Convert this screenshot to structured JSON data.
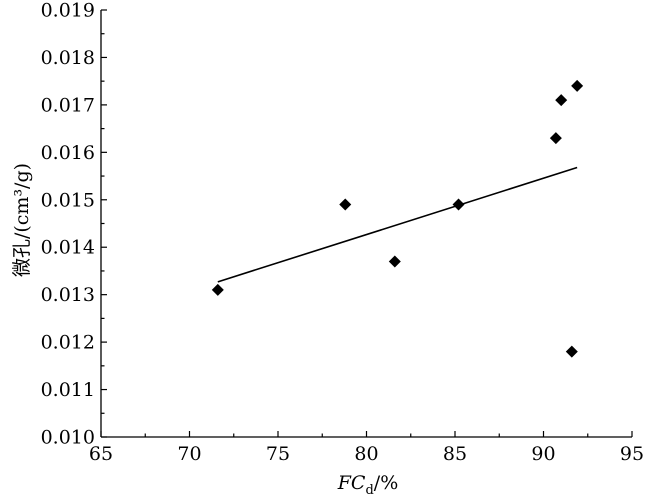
{
  "chart_data": {
    "type": "scatter",
    "xlabel": "FCd/%",
    "ylabel": "微孔/(cm³/g)",
    "xlim": [
      65,
      95
    ],
    "ylim": [
      0.01,
      0.019
    ],
    "x_ticks": [
      "65",
      "70",
      "75",
      "80",
      "85",
      "90",
      "95"
    ],
    "y_ticks": [
      "0.010",
      "0.011",
      "0.012",
      "0.013",
      "0.014",
      "0.015",
      "0.016",
      "0.017",
      "0.018",
      "0.019"
    ],
    "points": [
      {
        "x": 71.6,
        "y": 0.0131
      },
      {
        "x": 78.8,
        "y": 0.0149
      },
      {
        "x": 81.6,
        "y": 0.0137
      },
      {
        "x": 85.2,
        "y": 0.0149
      },
      {
        "x": 90.7,
        "y": 0.0163
      },
      {
        "x": 91.0,
        "y": 0.0171
      },
      {
        "x": 91.9,
        "y": 0.0174
      },
      {
        "x": 91.6,
        "y": 0.0118
      }
    ],
    "trend_line": [
      {
        "x": 71.6,
        "y": 0.01327
      },
      {
        "x": 91.9,
        "y": 0.01568
      }
    ],
    "marker_shape": "diamond",
    "marker_color": "#000000",
    "grid": false,
    "legend": "none"
  }
}
